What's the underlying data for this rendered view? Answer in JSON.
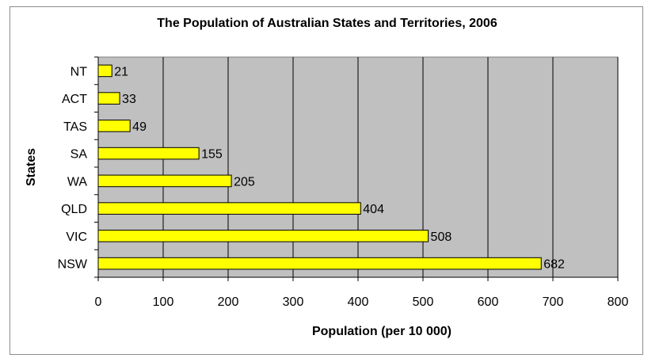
{
  "chart_data": {
    "type": "bar",
    "orientation": "horizontal",
    "title": "The Population of Australian States and Territories, 2006",
    "xlabel": "Population (per 10 000)",
    "ylabel": "States",
    "categories": [
      "NT",
      "ACT",
      "TAS",
      "SA",
      "WA",
      "QLD",
      "VIC",
      "NSW"
    ],
    "values": [
      21,
      33,
      49,
      155,
      205,
      404,
      508,
      682
    ],
    "data_labels": [
      "21",
      "33",
      "49",
      "155",
      "205",
      "404",
      "508",
      "682"
    ],
    "xlim": [
      0,
      800
    ],
    "xticks": [
      0,
      100,
      200,
      300,
      400,
      500,
      600,
      700,
      800
    ],
    "xtick_labels": [
      "0",
      "100",
      "200",
      "300",
      "400",
      "500",
      "600",
      "700",
      "800"
    ],
    "grid": "vertical",
    "legend": "none",
    "colors": {
      "plot_background": "#c0c0c0",
      "bar_fill": "#ffff00",
      "bar_stroke": "#000000",
      "gridline": "#000000"
    }
  }
}
